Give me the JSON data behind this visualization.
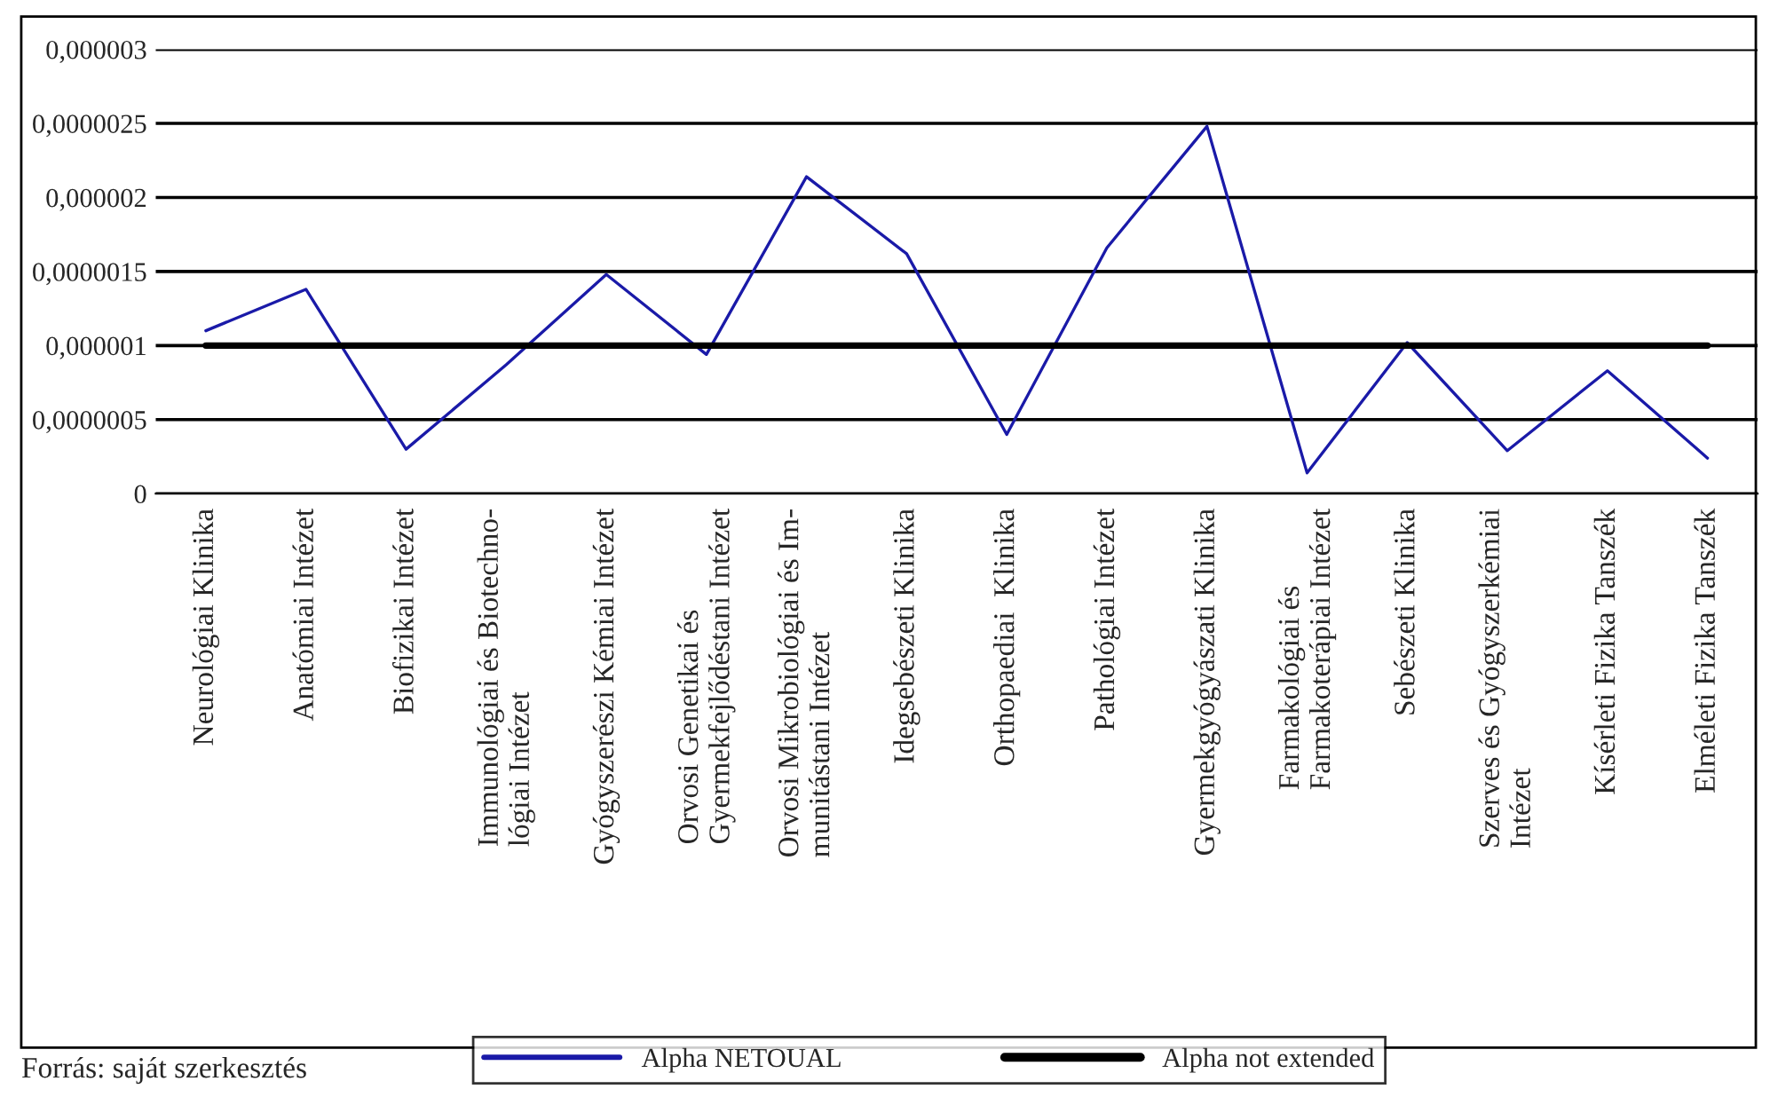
{
  "chart_data": {
    "type": "line",
    "categories": [
      "Neurológiai Klinika",
      "Anatómiai Intézet",
      "Biofizikai Intézet",
      "Immunológiai és Biotechno-\nlógiai Intézet",
      "Gyógyszerészi Kémiai Intézet",
      "Orvosi Genetikai és\nGyermekfejlődéstani Intézet",
      "Orvosi Mikrobiológiai és Im-\nmunitástani Intézet",
      "Idegsebészeti Klinika",
      "Orthopaediai  Klinika",
      "Pathológiai Intézet",
      "Gyermekgyógyászati Klinika",
      "Farmakológiai és\nFarmakoterápiai Intézet",
      "Sebészeti Klinika",
      "Szerves és Gyógyszerkémiai\nIntézet",
      "Kísérleti Fizika Tanszék",
      "Elméleti Fizika Tanszék"
    ],
    "series": [
      {
        "name": "Alpha NETOUAL",
        "color": "#1a1aa8",
        "values": [
          1.1e-06,
          1.38e-06,
          3e-07,
          8.7e-07,
          1.48e-06,
          9.4e-07,
          2.14e-06,
          1.62e-06,
          4e-07,
          1.66e-06,
          2.48e-06,
          1.4e-07,
          1.02e-06,
          2.9e-07,
          8.3e-07,
          2.4e-07
        ]
      },
      {
        "name": "Alpha not extended",
        "color": "#000000",
        "values": [
          1e-06,
          1e-06,
          1e-06,
          1e-06,
          1e-06,
          1e-06,
          1e-06,
          1e-06,
          1e-06,
          1e-06,
          1e-06,
          1e-06,
          1e-06,
          1e-06,
          1e-06,
          1e-06
        ]
      }
    ],
    "ylim": [
      0,
      3e-06
    ],
    "yticks": [
      {
        "value": 0,
        "label": "0"
      },
      {
        "value": 5e-07,
        "label": "0,0000005"
      },
      {
        "value": 1e-06,
        "label": "0,000001"
      },
      {
        "value": 1.5e-06,
        "label": "0,0000015"
      },
      {
        "value": 2e-06,
        "label": "0,000002"
      },
      {
        "value": 2.5e-06,
        "label": "0,0000025"
      },
      {
        "value": 3e-06,
        "label": "0,000003"
      }
    ],
    "grid": "y",
    "legend": "bottom",
    "annotations": [
      "Forrás: saját szerkesztés"
    ]
  }
}
